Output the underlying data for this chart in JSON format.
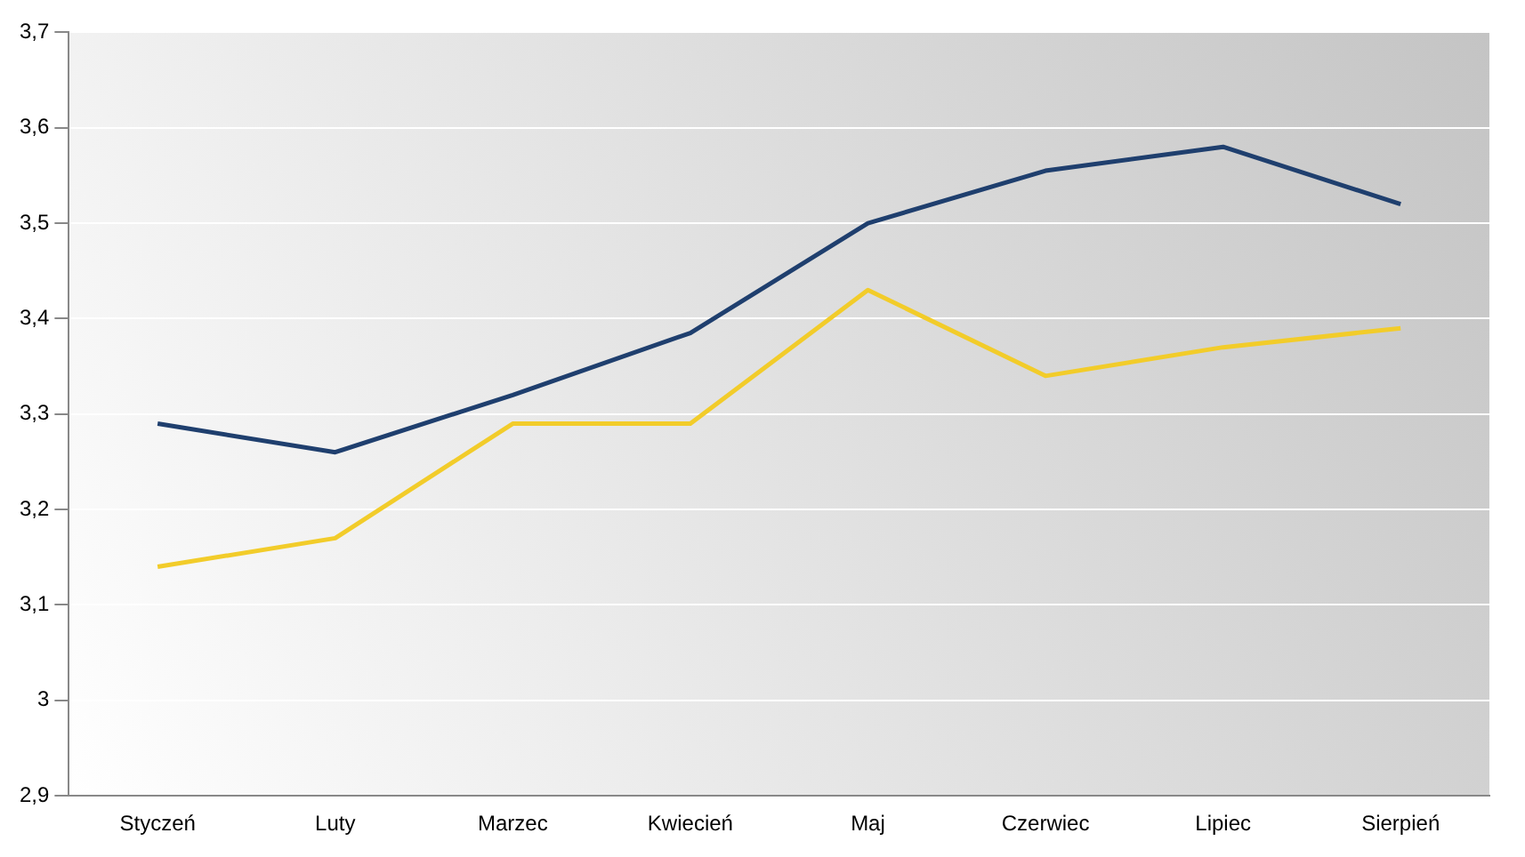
{
  "chart_data": {
    "type": "line",
    "categories": [
      "Styczeń",
      "Luty",
      "Marzec",
      "Kwiecień",
      "Maj",
      "Czerwiec",
      "Lipiec",
      "Sierpień"
    ],
    "series": [
      {
        "color": "#1f3f6e",
        "values": [
          3.29,
          3.26,
          3.32,
          3.385,
          3.5,
          3.555,
          3.58,
          3.52
        ]
      },
      {
        "color": "#f2cc2a",
        "values": [
          3.14,
          3.17,
          3.29,
          3.29,
          3.43,
          3.34,
          3.37,
          3.39
        ]
      }
    ],
    "ylim": [
      2.9,
      3.7
    ],
    "yticks": [
      {
        "value": 2.9,
        "label": "2,9"
      },
      3,
      {
        "value": 3.1,
        "label": "3,1"
      },
      {
        "value": 3.2,
        "label": "3,2"
      },
      {
        "value": 3.3,
        "label": "3,3"
      },
      {
        "value": 3.4,
        "label": "3,4"
      },
      {
        "value": 3.5,
        "label": "3,5"
      },
      {
        "value": 3.6,
        "label": "3,6"
      },
      {
        "value": 3.7,
        "label": "3,7"
      }
    ],
    "grid": "y",
    "legend": false,
    "marker": "none",
    "line_style": "solid"
  }
}
